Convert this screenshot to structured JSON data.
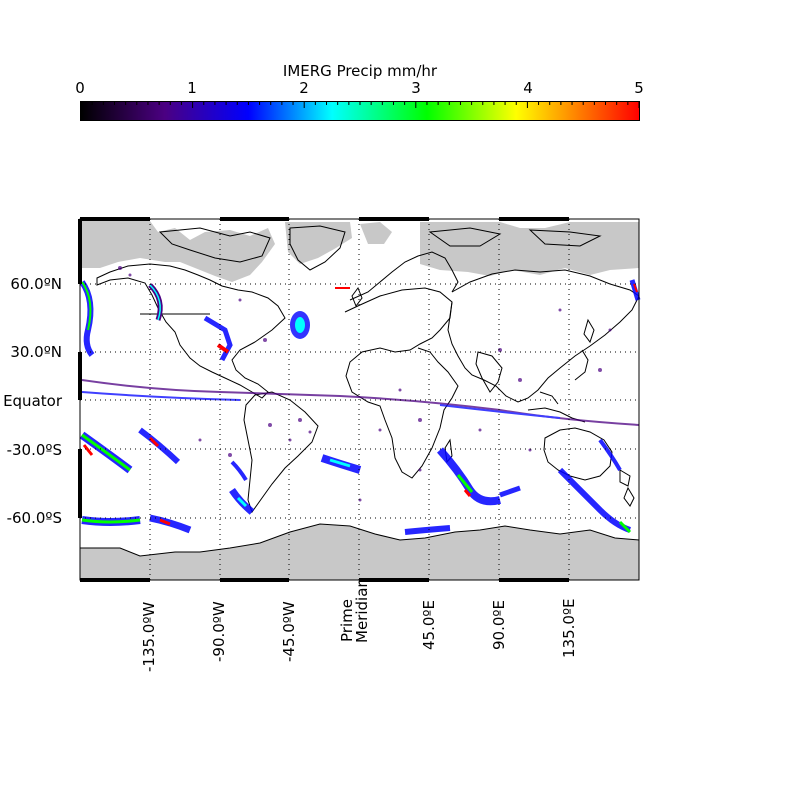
{
  "colorbar": {
    "title": "IMERG Precip mm/hr",
    "ticks": [
      "0",
      "1",
      "2",
      "3",
      "4",
      "5"
    ],
    "range": [
      0,
      5
    ],
    "colors": [
      "#000000",
      "#4b0082",
      "#0000ff",
      "#00ffff",
      "#00ff00",
      "#ffff00",
      "#ff8c00",
      "#ff0000"
    ]
  },
  "map": {
    "projection": "equirectangular",
    "ocean_color": "#ffffff",
    "missing_data_color": "#c8c8c8",
    "coastline_color": "#000000",
    "lat_labels": [
      {
        "lat": 60,
        "text": "60.0ºN"
      },
      {
        "lat": 30,
        "text": "30.0ºN"
      },
      {
        "lat": 0,
        "text": "Equator"
      },
      {
        "lat": -30,
        "text": "-30.0ºS"
      },
      {
        "lat": -60,
        "text": "-60.0ºS"
      }
    ],
    "lon_labels": [
      {
        "lon": -135,
        "text": "-135.0ºW"
      },
      {
        "lon": -90,
        "text": "-90.0ºW"
      },
      {
        "lon": -45,
        "text": "-45.0ºW"
      },
      {
        "lon": 0,
        "text": "Prime Meridian"
      },
      {
        "lon": 45,
        "text": "45.0ºE"
      },
      {
        "lon": 90,
        "text": "90.0ºE"
      },
      {
        "lon": 135,
        "text": "135.0ºE"
      }
    ],
    "gridlines": true
  }
}
